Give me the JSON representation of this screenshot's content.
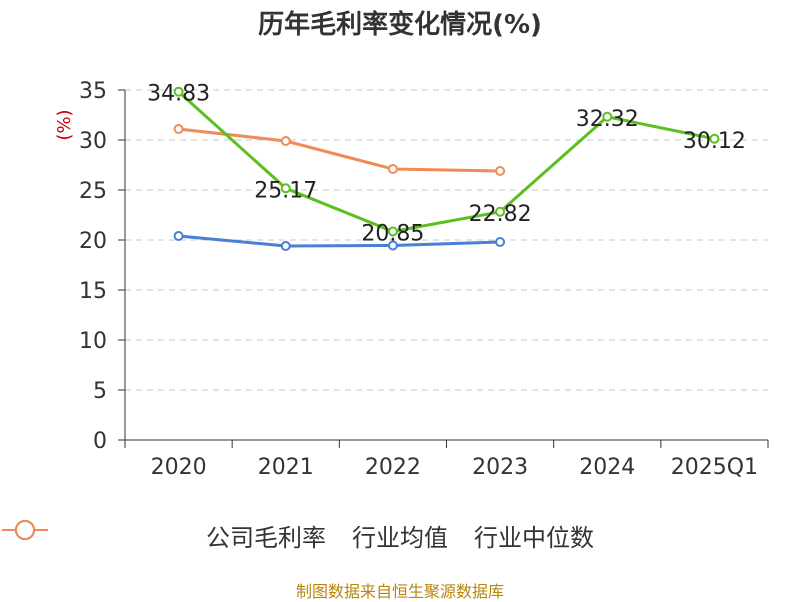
{
  "chart_data": {
    "type": "line",
    "title": "历年毛利率变化情况(%)",
    "ylabel": "(%)",
    "xlabel": "",
    "categories": [
      "2020",
      "2021",
      "2022",
      "2023",
      "2024",
      "2025Q1"
    ],
    "ylim": [
      0,
      35
    ],
    "yticks": [
      0,
      5,
      10,
      15,
      20,
      25,
      30,
      35
    ],
    "grid": true,
    "legend_position": "bottom",
    "series": [
      {
        "name": "公司毛利率",
        "color": "#5cbf1f",
        "values": [
          34.83,
          25.17,
          20.85,
          22.82,
          32.32,
          30.12
        ],
        "labels": [
          "34.83",
          "25.17",
          "20.85",
          "22.82",
          "32.32",
          "30.12"
        ],
        "show_labels": true
      },
      {
        "name": "行业均值",
        "color": "#4a7fd6",
        "values": [
          20.4,
          19.4,
          19.45,
          19.8,
          null,
          null
        ],
        "show_labels": false
      },
      {
        "name": "行业中位数",
        "color": "#f08a56",
        "values": [
          31.1,
          29.9,
          27.1,
          26.9,
          null,
          null
        ],
        "show_labels": false
      }
    ]
  },
  "source_text": "制图数据来自恒生聚源数据库"
}
